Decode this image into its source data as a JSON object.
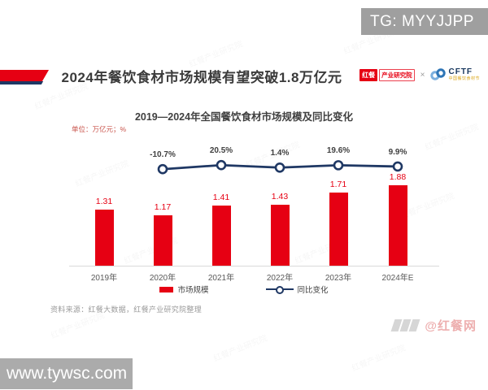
{
  "overlays": {
    "telegram_badge": "TG: MYYJJPP",
    "website_badge": "www.tywsc.com",
    "platform_handle": "@红餐网"
  },
  "header": {
    "title": "2024年餐饮食材市场规模有望突破1.8万亿元",
    "logo_hongcan": {
      "box": "红餐",
      "suffix": "产业研究院"
    },
    "logo_separator": "×",
    "logo_cftf": {
      "acronym": "CFTF",
      "subtitle": "中国餐饮食材节"
    }
  },
  "chart": {
    "title": "2019—2024年全国餐饮食材市场规模及同比变化",
    "unit_label": "单位：万亿元；%",
    "source_note": "资料来源：红餐大数据，红餐产业研究院整理",
    "legend": [
      {
        "label": "市场规模",
        "type": "bar"
      },
      {
        "label": "同比变化",
        "type": "line"
      }
    ]
  },
  "chart_data": {
    "type": "bar",
    "title": "2019—2024年全国餐饮食材市场规模及同比变化",
    "categories": [
      "2019年",
      "2020年",
      "2021年",
      "2022年",
      "2023年",
      "2024年E"
    ],
    "series": [
      {
        "name": "市场规模",
        "type": "bar",
        "unit": "万亿元",
        "values": [
          1.31,
          1.17,
          1.41,
          1.43,
          1.71,
          1.88
        ]
      },
      {
        "name": "同比变化",
        "type": "line",
        "unit": "%",
        "values": [
          null,
          -10.7,
          20.5,
          1.4,
          19.6,
          9.9
        ]
      }
    ],
    "xlabel": "",
    "ylabel": "万亿元；%",
    "ylim": [
      0,
      2.0
    ],
    "grid": false,
    "legend_position": "bottom"
  },
  "colors": {
    "bar_red": "#e60013",
    "line_navy": "#1f3864",
    "title_dark": "#3b3b3b",
    "badge_gray": "#9f9f9f",
    "site_badge_gray": "#ababab",
    "cftf_blue": "#2e75b6",
    "cftf_light_blue": "#7bafde",
    "unit_red": "#c8524a",
    "axis_gray": "#d9d9d9",
    "label_gray": "#595959"
  },
  "watermark_stamp": "红餐产业研究院"
}
